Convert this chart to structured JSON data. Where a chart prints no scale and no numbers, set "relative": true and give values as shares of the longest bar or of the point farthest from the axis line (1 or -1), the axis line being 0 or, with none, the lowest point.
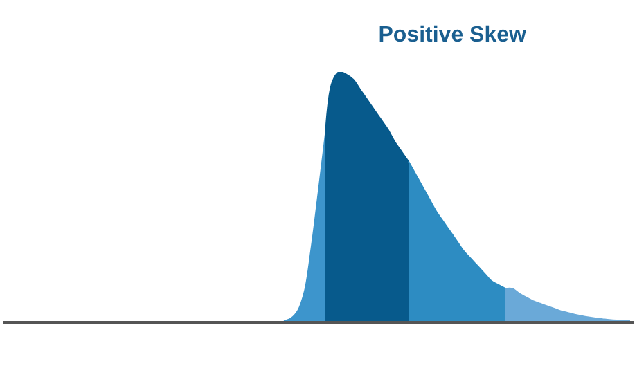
{
  "chart_data": {
    "type": "area",
    "title": "Positive Skew",
    "relative": true,
    "categories": [
      null,
      null,
      null,
      null,
      null,
      null,
      null,
      null,
      null,
      null,
      null,
      null,
      null,
      null,
      null,
      null,
      null,
      null,
      null,
      null,
      null,
      null,
      null,
      null,
      null,
      null,
      null,
      null,
      null,
      null,
      null,
      null,
      null,
      null,
      null,
      null,
      null,
      null,
      null,
      null,
      null,
      null,
      null,
      null,
      null,
      null,
      null,
      null,
      null,
      null,
      null,
      null,
      null,
      null,
      null,
      null,
      null,
      null,
      null,
      null,
      null,
      null,
      null,
      null,
      null,
      null,
      null,
      null,
      null,
      null,
      null,
      null,
      null,
      null,
      null,
      null,
      null,
      null,
      null,
      null,
      null,
      null,
      null,
      null,
      null,
      null,
      null,
      null,
      null,
      null,
      null
    ],
    "series": [
      {
        "color": "#3d95cc",
        "values": [
          null,
          null,
          null,
          null,
          null,
          null,
          null,
          null,
          null,
          null,
          null,
          null,
          null,
          null,
          null,
          null,
          null,
          null,
          null,
          null,
          null,
          null,
          null,
          null,
          null,
          null,
          null,
          null,
          null,
          null,
          null,
          null,
          null,
          null,
          null,
          null,
          null,
          null,
          null,
          null,
          0,
          0.01,
          0.04,
          0.12,
          0.3,
          0.52,
          0.75,
          null,
          null,
          null,
          null,
          null,
          null,
          null,
          null,
          null,
          null,
          null,
          null,
          null,
          null,
          null,
          null,
          null,
          null,
          null,
          null,
          null,
          null,
          null,
          null,
          null,
          null,
          null,
          null,
          null,
          null,
          null,
          null,
          null,
          null,
          null,
          null,
          null,
          null,
          null,
          null,
          null,
          null,
          null,
          null
        ]
      },
      {
        "color": "#075a8c",
        "values": [
          null,
          null,
          null,
          null,
          null,
          null,
          null,
          null,
          null,
          null,
          null,
          null,
          null,
          null,
          null,
          null,
          null,
          null,
          null,
          null,
          null,
          null,
          null,
          null,
          null,
          null,
          null,
          null,
          null,
          null,
          null,
          null,
          null,
          null,
          null,
          null,
          null,
          null,
          null,
          null,
          null,
          null,
          null,
          null,
          null,
          null,
          0.75,
          0.96,
          1.0,
          0.99,
          0.97,
          0.93,
          0.89,
          0.85,
          0.81,
          0.77,
          0.72,
          0.68,
          0.64,
          null,
          null,
          null,
          null,
          null,
          null,
          null,
          null,
          null,
          null,
          null,
          null,
          null,
          null,
          null,
          null,
          null,
          null,
          null,
          null,
          null,
          null,
          null,
          null,
          null,
          null,
          null,
          null,
          null,
          null,
          null,
          null
        ]
      },
      {
        "color": "#2d8cc2",
        "values": [
          null,
          null,
          null,
          null,
          null,
          null,
          null,
          null,
          null,
          null,
          null,
          null,
          null,
          null,
          null,
          null,
          null,
          null,
          null,
          null,
          null,
          null,
          null,
          null,
          null,
          null,
          null,
          null,
          null,
          null,
          null,
          null,
          null,
          null,
          null,
          null,
          null,
          null,
          null,
          null,
          null,
          null,
          null,
          null,
          null,
          null,
          null,
          null,
          null,
          null,
          null,
          null,
          null,
          null,
          null,
          null,
          null,
          null,
          0.64,
          0.59,
          0.54,
          0.49,
          0.44,
          0.4,
          0.36,
          0.32,
          0.28,
          0.25,
          0.22,
          0.19,
          0.16,
          0.145,
          0.13,
          null,
          null,
          null,
          null,
          null,
          null,
          null,
          null,
          null,
          null,
          null,
          null,
          null,
          null,
          null,
          null,
          null,
          null
        ]
      },
      {
        "color": "#6aa9d8",
        "values": [
          null,
          null,
          null,
          null,
          null,
          null,
          null,
          null,
          null,
          null,
          null,
          null,
          null,
          null,
          null,
          null,
          null,
          null,
          null,
          null,
          null,
          null,
          null,
          null,
          null,
          null,
          null,
          null,
          null,
          null,
          null,
          null,
          null,
          null,
          null,
          null,
          null,
          null,
          null,
          null,
          null,
          null,
          null,
          null,
          null,
          null,
          null,
          null,
          null,
          null,
          null,
          null,
          null,
          null,
          null,
          null,
          null,
          null,
          null,
          null,
          null,
          null,
          null,
          null,
          null,
          null,
          null,
          null,
          null,
          null,
          null,
          null,
          0.13,
          0.13,
          0.11,
          0.095,
          0.08,
          0.07,
          0.06,
          0.05,
          0.04,
          0.033,
          0.026,
          0.02,
          0.015,
          0.011,
          0.008,
          0.005,
          0.003,
          0.002,
          0.001
        ]
      }
    ]
  }
}
